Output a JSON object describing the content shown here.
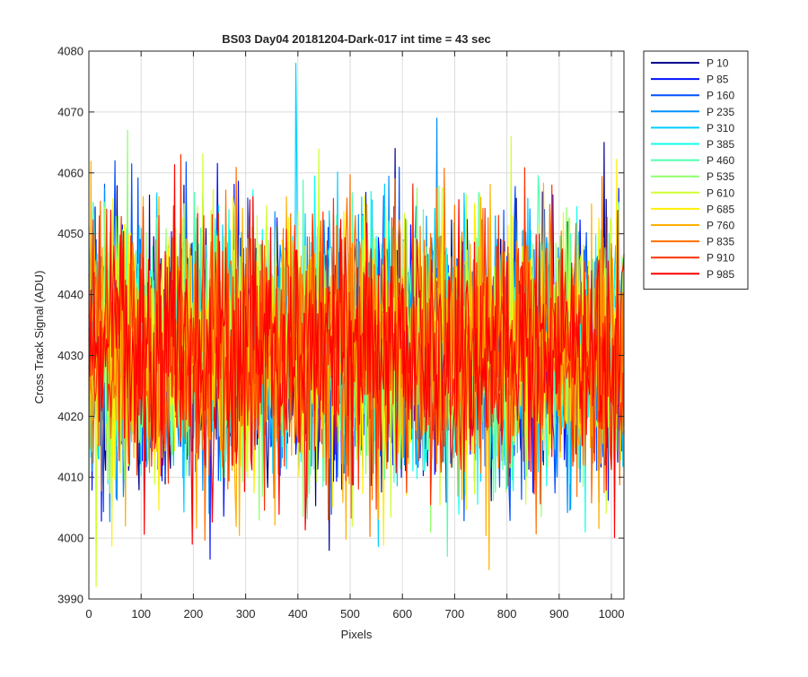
{
  "window": {
    "background": "#ffffff"
  },
  "chart_data": {
    "type": "line",
    "title": "BS03 Day04 20181204-Dark-017 int time = 43 sec",
    "xlabel": "Pixels",
    "ylabel": "Cross Track Signal (ADU)",
    "xlim": [
      0,
      1024
    ],
    "ylim": [
      3990,
      4080
    ],
    "xticks": [
      0,
      100,
      200,
      300,
      400,
      500,
      600,
      700,
      800,
      900,
      1000
    ],
    "yticks": [
      3990,
      4000,
      4010,
      4020,
      4030,
      4040,
      4050,
      4060,
      4070,
      4080
    ],
    "grid": true,
    "legend_position": "outside-top-right",
    "series_summary": {
      "mean": 4031,
      "typical_min": 4010,
      "typical_max": 4055,
      "observed_min": 3992,
      "observed_max": 4078
    },
    "notable_points": [
      {
        "series": "P 310",
        "x": 396,
        "y": 4078
      },
      {
        "series": "P 235",
        "x": 665,
        "y": 4069
      },
      {
        "series": "P 535",
        "x": 73,
        "y": 4067
      },
      {
        "series": "P 910",
        "x": 175,
        "y": 4063
      },
      {
        "series": "P 610",
        "x": 14,
        "y": 3992
      },
      {
        "series": "P 460",
        "x": 686,
        "y": 3997
      },
      {
        "series": "P 10",
        "x": 460,
        "y": 3998
      },
      {
        "series": "P 985",
        "x": 197,
        "y": 3999
      },
      {
        "series": "P 160",
        "x": 50,
        "y": 4062
      },
      {
        "series": "P 10",
        "x": 585,
        "y": 4064
      },
      {
        "series": "P 610",
        "x": 808,
        "y": 4066
      },
      {
        "series": "P 10",
        "x": 985,
        "y": 4065
      }
    ],
    "series": [
      {
        "name": "P 10",
        "color": "#00008f"
      },
      {
        "name": "P 85",
        "color": "#0010ff"
      },
      {
        "name": "P 160",
        "color": "#0050ff"
      },
      {
        "name": "P 235",
        "color": "#0090ff"
      },
      {
        "name": "P 310",
        "color": "#00d0ff"
      },
      {
        "name": "P 385",
        "color": "#10ffef"
      },
      {
        "name": "P 460",
        "color": "#50ffaf"
      },
      {
        "name": "P 535",
        "color": "#90ff6f"
      },
      {
        "name": "P 610",
        "color": "#cfff30"
      },
      {
        "name": "P 685",
        "color": "#ffef00"
      },
      {
        "name": "P 760",
        "color": "#ffaf00"
      },
      {
        "name": "P 835",
        "color": "#ff7000"
      },
      {
        "name": "P 910",
        "color": "#ff3000"
      },
      {
        "name": "P 985",
        "color": "#ff0000"
      }
    ]
  }
}
